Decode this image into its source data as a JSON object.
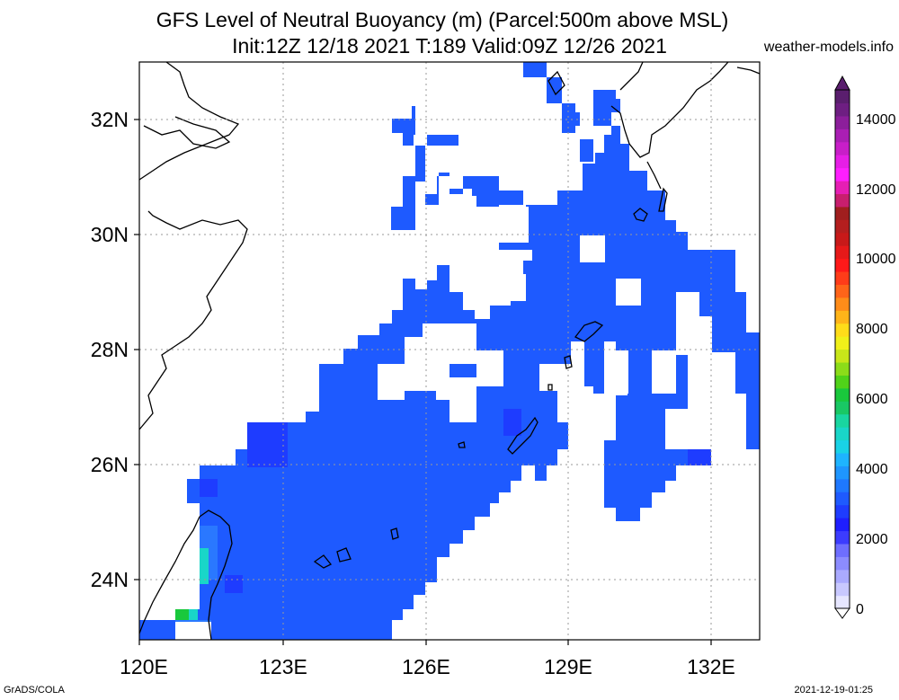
{
  "header": {
    "title_line1": "GFS Level of Neutral Buoyancy (m) (Parcel:500m above MSL)",
    "title_line2": "Init:12Z 12/18 2021 T:189 Valid:09Z 12/26 2021",
    "watermark": "weather-models.info"
  },
  "footer": {
    "left": "GrADS/COLA",
    "right": "2021-12-19-01:25"
  },
  "map": {
    "lon_labels": [
      "120E",
      "123E",
      "126E",
      "129E",
      "132E"
    ],
    "lat_labels": [
      "32N",
      "30N",
      "28N",
      "26N",
      "24N"
    ],
    "fill_colors": {
      "main": "#1e5aff",
      "deep": "#1e3cff",
      "land_low": "#2a78ff",
      "teal": "#19d6c8",
      "green": "#19c83c",
      "coast": "#000000",
      "grid": "#999999"
    }
  },
  "colorbar": {
    "labels": [
      "14000",
      "12000",
      "10000",
      "8000",
      "6000",
      "4000",
      "2000",
      "0"
    ],
    "colors": [
      "#e6e6ff",
      "#c8c8ff",
      "#aaaaff",
      "#8c8cff",
      "#6e6eff",
      "#3c3cff",
      "#1e1eff",
      "#1e3cff",
      "#1e5aff",
      "#1e78ff",
      "#1e96ff",
      "#1eb4ff",
      "#19d2e6",
      "#19d6c8",
      "#19d6a0",
      "#19c864",
      "#19c83c",
      "#50d219",
      "#8cdc19",
      "#c8e619",
      "#f0f019",
      "#ffdc19",
      "#ffb419",
      "#ff8c19",
      "#ff6419",
      "#ff3c19",
      "#ff1919",
      "#e61919",
      "#c81919",
      "#b41e1e",
      "#a01e1e",
      "#c81e6e",
      "#e61eb4",
      "#ff1eff",
      "#e61ee6",
      "#c81ec8",
      "#aa1eb4",
      "#8c1e9b",
      "#6e1e82",
      "#5a1e6e"
    ]
  }
}
